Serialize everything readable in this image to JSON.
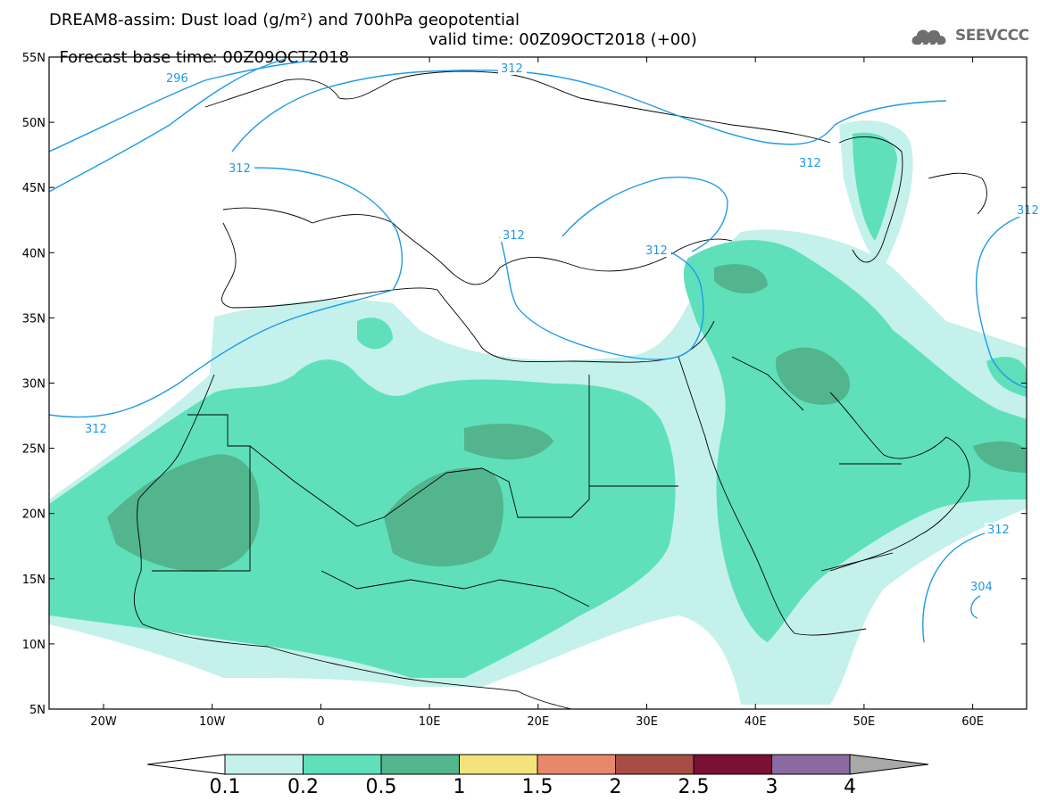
{
  "title": {
    "line1": "DREAM8-assim: Dust load (g/m²) and 700hPa geopotential",
    "line2_base": "Forecast base time: 00Z09OCT2018",
    "line2_valid": "valid time: 00Z09OCT2018 (+00)"
  },
  "logo": {
    "text": "SEEVCCC",
    "icon": "cloud-icon"
  },
  "map": {
    "lat_labels": [
      "55N",
      "50N",
      "45N",
      "40N",
      "35N",
      "30N",
      "25N",
      "20N",
      "15N",
      "10N",
      "5N"
    ],
    "lon_labels": [
      "20W",
      "10W",
      "0",
      "10E",
      "20E",
      "30E",
      "40E",
      "50E",
      "60E"
    ],
    "contour_labels": [
      "296",
      "312",
      "312",
      "312",
      "312",
      "312",
      "312",
      "312",
      "304",
      "312"
    ],
    "colors": {
      "contour": "#1e9be6",
      "land_border": "#000000"
    }
  },
  "colorbar": {
    "labels": [
      "0.1",
      "0.2",
      "0.5",
      "1",
      "1.5",
      "2",
      "2.5",
      "3",
      "4"
    ],
    "colors": [
      "#c4f1ec",
      "#5fe0bb",
      "#52b58e",
      "#f4e37a",
      "#e8886a",
      "#a74d45",
      "#7a1033",
      "#8a6aa0"
    ],
    "under_color": "#ffffff",
    "over_color": "#a8a8a8"
  }
}
